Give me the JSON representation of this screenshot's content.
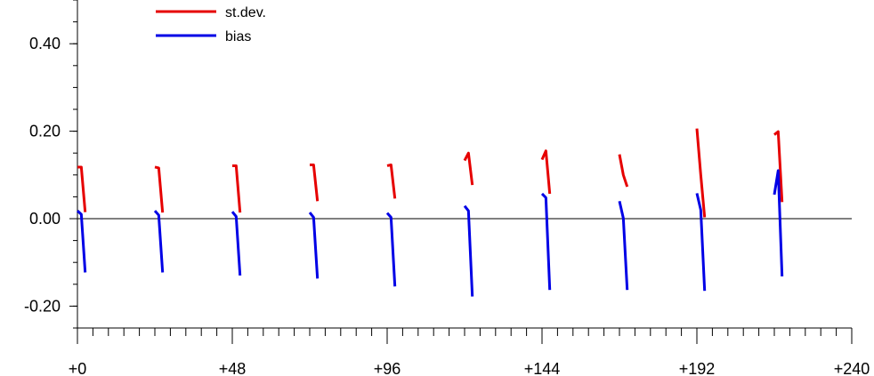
{
  "chart_data": {
    "type": "line",
    "title": "",
    "xlabel": "",
    "ylabel": "",
    "xlim": [
      0,
      240
    ],
    "ylim": [
      -0.25,
      0.5
    ],
    "x_ticks": [
      0,
      48,
      96,
      144,
      192,
      240
    ],
    "x_tick_labels": [
      "+0",
      "+48",
      "+96",
      "+144",
      "+192",
      "+240"
    ],
    "x_minor_step": 4.8,
    "y_ticks": [
      -0.2,
      0.0,
      0.2,
      0.4
    ],
    "y_tick_labels": [
      "-0.20",
      "0.00",
      "0.20",
      "0.40"
    ],
    "y_minor_step": 0.05,
    "zero_line": true,
    "grid": false,
    "legend": {
      "position": "top-left",
      "entries": [
        {
          "name": "st.dev.",
          "color": "#e60000"
        },
        {
          "name": "bias",
          "color": "#0000e6"
        }
      ]
    },
    "series": [
      {
        "name": "st.dev.",
        "color": "#e60000",
        "segments": [
          {
            "x": [
              0,
              1.2,
              2.4
            ],
            "y": [
              0.118,
              0.118,
              0.015
            ]
          },
          {
            "x": [
              24,
              25.2,
              26.4
            ],
            "y": [
              0.118,
              0.116,
              0.014
            ]
          },
          {
            "x": [
              48,
              49.2,
              50.4
            ],
            "y": [
              0.121,
              0.121,
              0.014
            ]
          },
          {
            "x": [
              72,
              73.2,
              74.4
            ],
            "y": [
              0.123,
              0.123,
              0.04
            ]
          },
          {
            "x": [
              96,
              97.2,
              98.4
            ],
            "y": [
              0.121,
              0.123,
              0.046
            ]
          },
          {
            "x": [
              120,
              121.2,
              122.4
            ],
            "y": [
              0.133,
              0.15,
              0.077
            ]
          },
          {
            "x": [
              144,
              145.2,
              146.4
            ],
            "y": [
              0.135,
              0.155,
              0.057
            ]
          },
          {
            "x": [
              168,
              169.2,
              170.4
            ],
            "y": [
              0.147,
              0.1,
              0.073
            ]
          },
          {
            "x": [
              192,
              193.2,
              194.4
            ],
            "y": [
              0.206,
              0.1,
              0.003
            ]
          },
          {
            "x": [
              216,
              217.2,
              218.4
            ],
            "y": [
              0.192,
              0.199,
              0.038
            ]
          }
        ]
      },
      {
        "name": "bias",
        "color": "#0000e6",
        "segments": [
          {
            "x": [
              0,
              1.2,
              2.4
            ],
            "y": [
              0.018,
              0.01,
              -0.123
            ]
          },
          {
            "x": [
              24,
              25.2,
              26.4
            ],
            "y": [
              0.018,
              0.008,
              -0.123
            ]
          },
          {
            "x": [
              48,
              49.2,
              50.4
            ],
            "y": [
              0.016,
              0.005,
              -0.13
            ]
          },
          {
            "x": [
              72,
              73.2,
              74.4
            ],
            "y": [
              0.014,
              0.003,
              -0.137
            ]
          },
          {
            "x": [
              96,
              97.2,
              98.4
            ],
            "y": [
              0.013,
              0.003,
              -0.155
            ]
          },
          {
            "x": [
              120,
              121.2,
              122.4
            ],
            "y": [
              0.029,
              0.018,
              -0.178
            ]
          },
          {
            "x": [
              144,
              145.2,
              146.4
            ],
            "y": [
              0.057,
              0.048,
              -0.163
            ]
          },
          {
            "x": [
              168,
              169.2,
              170.4
            ],
            "y": [
              0.04,
              0.001,
              -0.163
            ]
          },
          {
            "x": [
              192,
              193.2,
              194.4
            ],
            "y": [
              0.058,
              0.02,
              -0.165
            ]
          },
          {
            "x": [
              216,
              217.2,
              218.4
            ],
            "y": [
              0.055,
              0.11,
              -0.132
            ]
          }
        ]
      }
    ]
  }
}
